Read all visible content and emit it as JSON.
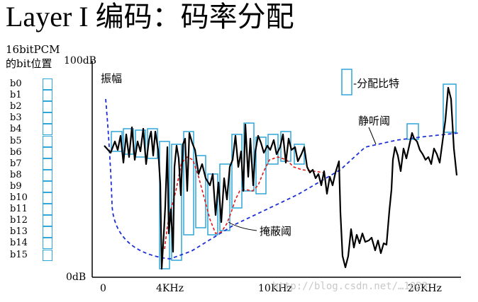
{
  "title": "Layer I 编码：码率分配",
  "side": {
    "line1": "16bitPCM",
    "line2": "的bit位置",
    "bits": [
      "b0",
      "b1",
      "b2",
      "b3",
      "b4",
      "b5",
      "b6",
      "b7",
      "b8",
      "b9",
      "b10",
      "b11",
      "b12",
      "b13",
      "b14",
      "b15"
    ]
  },
  "plot": {
    "y_top": "100dB",
    "y_bottom": "0dB",
    "x_ticks": [
      "0",
      "4KHz",
      "10KHz",
      "20KHz"
    ],
    "amplitude_label": "振幅",
    "legend_label": "-分配比特",
    "quiet_threshold_label": "静听阈",
    "masking_threshold_label": "掩蔽阈"
  },
  "colors": {
    "spectrum": "#000000",
    "quiet_threshold": "#1f2fd6",
    "masking_threshold": "#e01818",
    "bit_box": "#2fa6d8"
  },
  "watermark": "http://blog.csdn.net/…1023"
}
